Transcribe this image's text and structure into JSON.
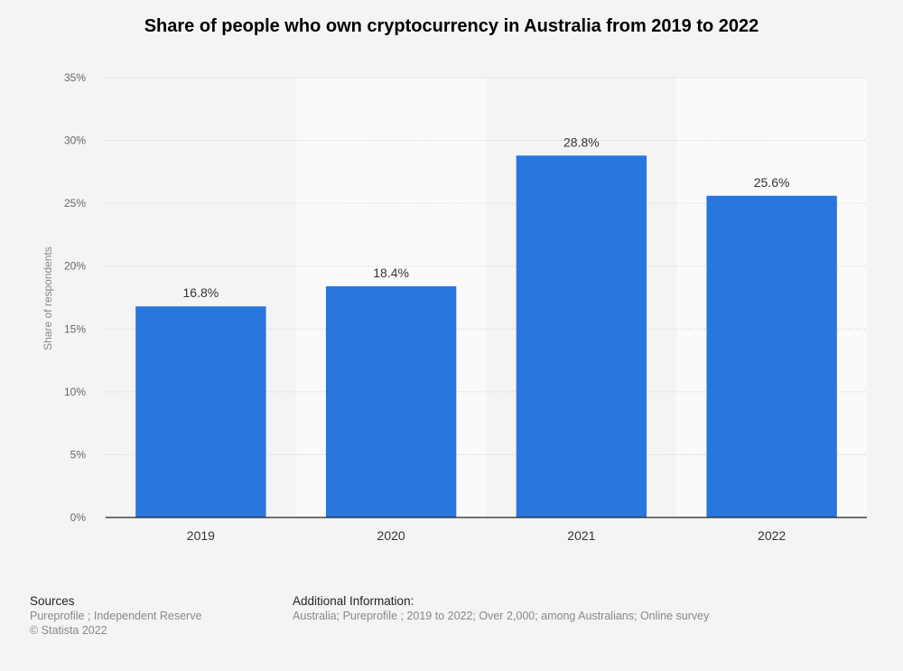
{
  "title": "Share of people who own cryptocurrency in Australia from 2019 to 2022",
  "chart_data": {
    "type": "bar",
    "title": "Share of people who own cryptocurrency in Australia from 2019 to 2022",
    "categories": [
      "2019",
      "2020",
      "2021",
      "2022"
    ],
    "values": [
      16.8,
      18.4,
      28.8,
      25.6
    ],
    "data_labels": [
      "16.8%",
      "18.4%",
      "28.8%",
      "25.6%"
    ],
    "xlabel": "",
    "ylabel": "Share of respondents",
    "ylim": [
      0,
      35
    ],
    "yticks": [
      0,
      5,
      10,
      15,
      20,
      25,
      30,
      35
    ],
    "ytick_labels": [
      "0%",
      "5%",
      "10%",
      "15%",
      "20%",
      "25%",
      "30%",
      "35%"
    ],
    "grid": true,
    "legend": "none",
    "bar_color": "#2876dd"
  },
  "footer": {
    "sources_heading": "Sources",
    "sources_text": "Pureprofile ; Independent Reserve",
    "copyright": "© Statista 2022",
    "additional_heading": "Additional Information:",
    "additional_text": "Australia; Pureprofile ; 2019 to 2022; Over 2,000; among Australians; Online survey"
  }
}
